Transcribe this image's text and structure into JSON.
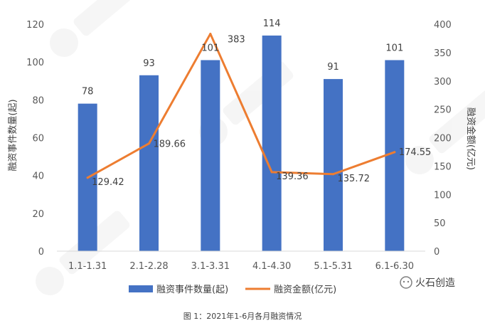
{
  "chart_data": {
    "type": "bar",
    "categories": [
      "1.1-1.31",
      "2.1-2.28",
      "3.1-3.31",
      "4.1-4.30",
      "5.1-5.31",
      "6.1-6.30"
    ],
    "series": [
      {
        "name": "融资事件数量(起)",
        "type": "bar",
        "axis": "left",
        "values": [
          78,
          93,
          101,
          114,
          91,
          101
        ],
        "labels": [
          "78",
          "93",
          "101",
          "114",
          "91",
          "101"
        ],
        "color": "#4472C4"
      },
      {
        "name": "融资金额(亿元)",
        "type": "line",
        "axis": "right",
        "values": [
          129.42,
          189.66,
          383,
          139.36,
          135.72,
          174.55
        ],
        "labels": [
          "129.42",
          "189.66",
          "383",
          "139.36",
          "135.72",
          "174.55"
        ],
        "color": "#ED7D31"
      }
    ],
    "ylabel": "融资事件数量(起)",
    "y2label": "融资金额(亿元)",
    "ylim": [
      0,
      120
    ],
    "y2lim": [
      0,
      400
    ],
    "yticks": [
      "0",
      "20",
      "40",
      "60",
      "80",
      "100",
      "120"
    ],
    "y2ticks": [
      "0",
      "50",
      "100",
      "150",
      "200",
      "250",
      "300",
      "350",
      "400"
    ],
    "grid": false,
    "legend": "bottom",
    "caption": "图 1：2021年1-6月各月融资情况"
  },
  "brand": {
    "text": "火石创造"
  },
  "colors": {
    "bar": "#4472C4",
    "line": "#ED7D31",
    "axis": "#d9d9d9"
  }
}
